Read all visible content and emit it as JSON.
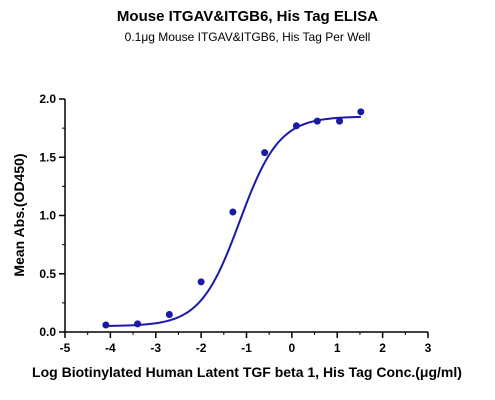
{
  "chart_data": {
    "type": "scatter",
    "title": "Mouse ITGAV&ITGB6, His Tag ELISA",
    "subtitle": "0.1μg Mouse ITGAV&ITGB6, His Tag Per Well",
    "xlabel": "Log Biotinylated Human Latent TGF beta 1, His Tag Conc.(μg/ml)",
    "ylabel": "Mean Abs.(OD450)",
    "xlim": [
      -5,
      3
    ],
    "ylim": [
      0,
      2.0
    ],
    "x_ticks": [
      "-5",
      "-4",
      "-3",
      "-2",
      "-1",
      "0",
      "1",
      "2",
      "3"
    ],
    "y_ticks": [
      "0.0",
      "0.5",
      "1.0",
      "1.5",
      "2.0"
    ],
    "grid": false,
    "series": [
      {
        "color": "#1a1aa6",
        "points": [
          {
            "x": -4.1,
            "y": 0.06
          },
          {
            "x": -3.4,
            "y": 0.07
          },
          {
            "x": -2.7,
            "y": 0.15
          },
          {
            "x": -2.0,
            "y": 0.43
          },
          {
            "x": -1.3,
            "y": 1.03
          },
          {
            "x": -0.6,
            "y": 1.54
          },
          {
            "x": 0.1,
            "y": 1.77
          },
          {
            "x": 0.56,
            "y": 1.81
          },
          {
            "x": 1.05,
            "y": 1.81
          },
          {
            "x": 1.52,
            "y": 1.89
          }
        ],
        "fit": {
          "bottom": 0.05,
          "top": 1.85,
          "ec50_log": -1.15,
          "hill": 1.0
        }
      }
    ]
  }
}
